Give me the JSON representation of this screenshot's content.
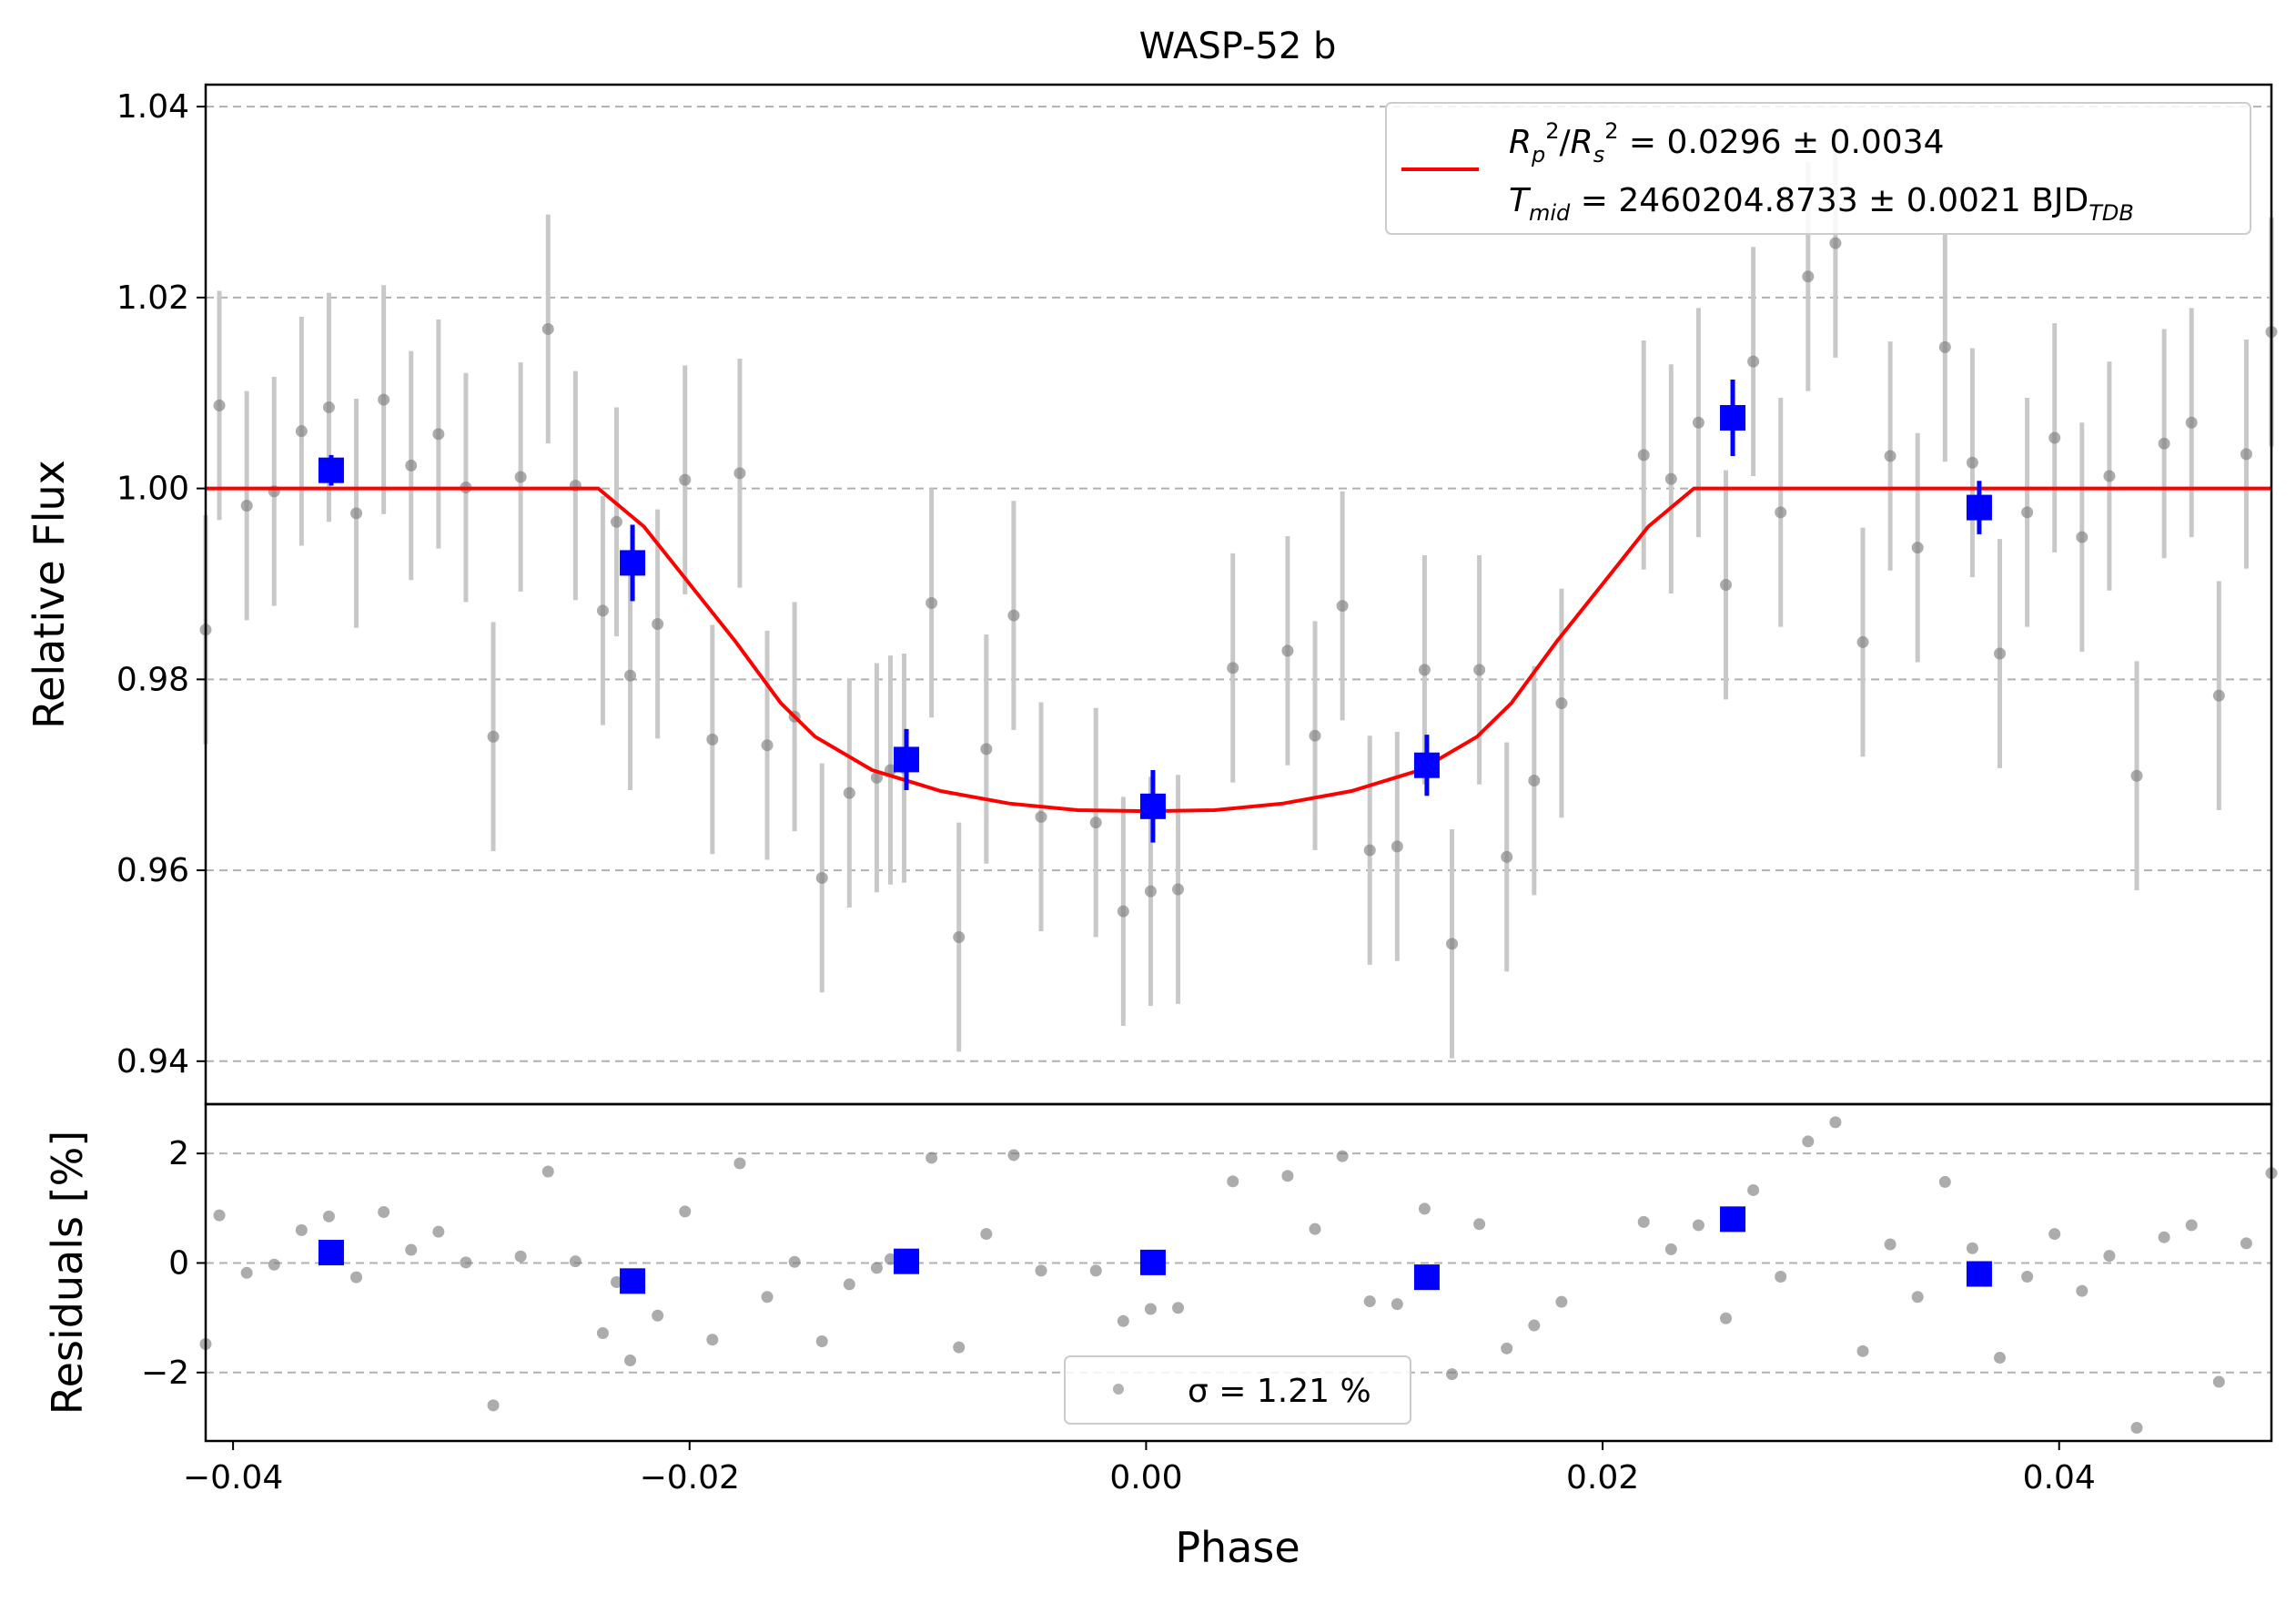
{
  "chart_data": [
    {
      "type": "scatter",
      "panel": "main",
      "title": "WASP-52 b",
      "xlabel": "Phase",
      "ylabel": "Relative Flux",
      "xlim": [
        -0.0412,
        0.0493
      ],
      "ylim": [
        0.9355,
        1.0423
      ],
      "xticks": [
        -0.04,
        -0.02,
        0.0,
        0.02,
        0.04
      ],
      "xtick_labels": [
        "−0.04",
        "−0.02",
        "0.00",
        "0.02",
        "0.04"
      ],
      "yticks": [
        0.94,
        0.96,
        0.98,
        1.0,
        1.02,
        1.04
      ],
      "ytick_labels": [
        "0.94",
        "0.96",
        "0.98",
        "1.00",
        "1.02",
        "1.04"
      ],
      "grid": "y-dashed",
      "legend_position": "upper-right",
      "legend": {
        "line1": "R_p^2/R_s^2 = 0.0296 ± 0.0034",
        "line2": "T_mid = 2460204.8733 ± 0.0021 BJD_TDB"
      },
      "colors": {
        "raw": "#808080",
        "errorbar": "#c8c8c8",
        "binned": "#0000ff",
        "model": "#ff0000",
        "grid": "#b0b0b0"
      },
      "series": [
        {
          "name": "raw",
          "x": [
            -0.0412,
            -0.0406,
            -0.0394,
            -0.0382,
            -0.037,
            -0.0358,
            -0.0346,
            -0.0334,
            -0.0322,
            -0.031,
            -0.0298,
            -0.0286,
            -0.0274,
            -0.0262,
            -0.025,
            -0.0238,
            -0.0232,
            -0.0226,
            -0.0214,
            -0.0202,
            -0.019,
            -0.0178,
            -0.0166,
            -0.0154,
            -0.0142,
            -0.013,
            -0.0118,
            -0.0112,
            -0.0106,
            -0.0094,
            -0.0082,
            -0.007,
            -0.0058,
            -0.0046,
            -0.0022,
            -0.001,
            0.0002,
            0.0014,
            0.0038,
            0.0062,
            0.0074,
            0.0086,
            0.0098,
            0.011,
            0.0122,
            0.0134,
            0.0146,
            0.0158,
            0.017,
            0.0182,
            0.0218,
            0.023,
            0.0242,
            0.0254,
            0.0266,
            0.0278,
            0.029,
            0.0302,
            0.0314,
            0.0326,
            0.0338,
            0.035,
            0.0362,
            0.0374,
            0.0386,
            0.0398,
            0.041,
            0.0422,
            0.0434,
            0.0446,
            0.0458,
            0.047,
            0.0482,
            0.0493
          ],
          "y": [
            0.9852,
            1.0087,
            0.9982,
            0.9997,
            1.006,
            1.0085,
            0.9974,
            1.0093,
            1.0024,
            1.0057,
            1.0001,
            0.974,
            1.0012,
            1.0167,
            1.0003,
            0.9872,
            0.9965,
            0.9804,
            0.9858,
            1.0009,
            0.9737,
            1.0016,
            0.9731,
            0.9761,
            0.9592,
            0.9681,
            0.9697,
            0.9705,
            0.9707,
            0.988,
            0.953,
            0.9727,
            0.9867,
            0.9656,
            0.965,
            0.9557,
            0.9578,
            0.958,
            0.9812,
            0.983,
            0.9741,
            0.9877,
            0.9621,
            0.9625,
            0.981,
            0.9523,
            0.981,
            0.9614,
            0.9694,
            0.9775,
            1.0035,
            1.001,
            1.0069,
            0.9899,
            1.0133,
            0.9975,
            1.0222,
            1.0257,
            0.9839,
            1.0034,
            0.9938,
            1.0148,
            1.0027,
            0.9827,
            0.9975,
            1.0053,
            0.9949,
            1.0013,
            0.9699,
            1.0047,
            1.0069,
            0.9783,
            1.0036,
            1.0164
          ],
          "yerr": 0.012
        },
        {
          "name": "binned",
          "x": [
            -0.0357,
            -0.0225,
            -0.0105,
            0.0003,
            0.0123,
            0.0257,
            0.0365
          ],
          "y": [
            1.0019,
            0.9922,
            0.9716,
            0.9667,
            0.971,
            1.0074,
            0.998
          ],
          "yerr": [
            0.0016,
            0.004,
            0.0032,
            0.0038,
            0.0032,
            0.004,
            0.0028
          ]
        },
        {
          "name": "model",
          "x": [
            -0.0412,
            -0.024,
            -0.022,
            -0.02,
            -0.018,
            -0.016,
            -0.0145,
            -0.012,
            -0.009,
            -0.006,
            -0.003,
            0.0,
            0.003,
            0.006,
            0.009,
            0.012,
            0.0145,
            0.016,
            0.018,
            0.02,
            0.022,
            0.024,
            0.0493
          ],
          "y": [
            1.0,
            1.0,
            0.996,
            0.99,
            0.984,
            0.9775,
            0.974,
            0.9705,
            0.9683,
            0.967,
            0.9663,
            0.9662,
            0.9663,
            0.967,
            0.9683,
            0.9705,
            0.974,
            0.9775,
            0.984,
            0.99,
            0.996,
            1.0,
            1.0
          ]
        }
      ]
    },
    {
      "type": "scatter",
      "panel": "residuals",
      "xlabel": "Phase",
      "ylabel": "Residuals [%]",
      "ylim": [
        -3.25,
        2.9
      ],
      "yticks": [
        -2,
        0,
        2
      ],
      "ytick_labels": [
        "−2",
        "0",
        "2"
      ],
      "grid": "y-dashed",
      "legend_position": "lower-center",
      "legend": {
        "label": "σ = 1.21 %"
      },
      "series": [
        {
          "name": "raw",
          "y": [
            -1.48,
            0.87,
            -0.18,
            -0.03,
            0.6,
            0.85,
            -0.26,
            0.93,
            0.24,
            0.57,
            0.01,
            -2.6,
            0.12,
            1.67,
            0.03,
            -1.28,
            -0.35,
            -1.78,
            -0.96,
            0.94,
            -1.4,
            1.82,
            -0.62,
            0.02,
            -1.43,
            -0.39,
            -0.09,
            0.07,
            0.04,
            1.92,
            -1.54,
            0.53,
            1.97,
            -0.14,
            -0.14,
            -1.06,
            -0.84,
            -0.82,
            1.49,
            1.59,
            0.62,
            1.95,
            -0.7,
            -0.75,
            0.99,
            -2.03,
            0.71,
            -1.56,
            -1.14,
            -0.71,
            0.75,
            0.25,
            0.69,
            -1.01,
            1.33,
            -0.25,
            2.22,
            2.57,
            -1.61,
            0.34,
            -0.62,
            1.48,
            0.27,
            -1.73,
            -0.25,
            0.53,
            -0.51,
            0.13,
            -3.01,
            0.47,
            0.69,
            -2.17,
            0.36,
            1.64
          ]
        },
        {
          "name": "binned",
          "y": [
            0.19,
            -0.33,
            0.03,
            0.01,
            -0.26,
            0.8,
            -0.2
          ]
        }
      ]
    }
  ]
}
